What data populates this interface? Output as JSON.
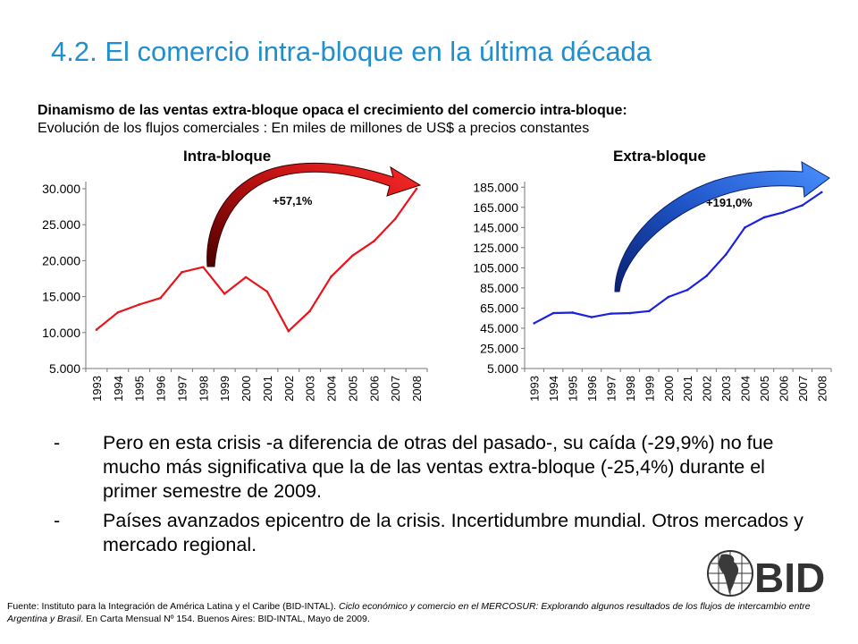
{
  "slide": {
    "title": "4.2. El comercio intra-bloque en la última década",
    "subtitle_bold": "Dinamismo de las ventas extra-bloque opaca el crecimiento del comercio intra-bloque:",
    "subtitle_normal": "Evolución de los flujos comerciales : En miles de millones de US$ a precios constantes"
  },
  "bullets": [
    {
      "marker": "-",
      "text": "Pero en esta crisis -a diferencia de otras del pasado-, su caída (-29,9%) no fue mucho más significativa que la de las ventas extra-bloque (-25,4%) durante el primer semestre de 2009."
    },
    {
      "marker": "-",
      "text": "Países avanzados epicentro de la crisis. Incertidumbre mundial. Otros mercados y mercado regional."
    }
  ],
  "logo": {
    "text": "BID"
  },
  "footer": {
    "part1": "Fuente: Instituto para la Integración de América Latina y el Caribe (BID-INTAL).  ",
    "part2_italic": "Ciclo económico y comercio en el MERCOSUR: Explorando algunos resultados de los flujos de intercambio entre Argentina y Brasil",
    "part3": ". En Carta Mensual Nº 154. Buenos Aires: BID-INTAL,  Mayo de 2009."
  },
  "chart_data": [
    {
      "type": "line",
      "title": "Intra-bloque",
      "annotation": "+57,1%",
      "color": "#e8141b",
      "arrow_color": "#d41e1e",
      "categories": [
        "1993",
        "1994",
        "1995",
        "1996",
        "1997",
        "1998",
        "1999",
        "2000",
        "2001",
        "2002",
        "2003",
        "2004",
        "2005",
        "2006",
        "2007",
        "2008"
      ],
      "values": [
        10400,
        12800,
        13900,
        14800,
        18400,
        19100,
        15400,
        17700,
        15700,
        10200,
        13000,
        17800,
        20700,
        22700,
        25800,
        30000
      ],
      "yticks": [
        5000,
        10000,
        15000,
        20000,
        25000,
        30000
      ],
      "ytick_labels": [
        "5.000",
        "10.000",
        "15.000",
        "20.000",
        "25.000",
        "30.000"
      ],
      "ylim": [
        5000,
        30500
      ],
      "grid": false
    },
    {
      "type": "line",
      "title": "Extra-bloque",
      "annotation": "+191,0%",
      "color": "#1a22e0",
      "arrow_color": "#2f66d8",
      "categories": [
        "1993",
        "1994",
        "1995",
        "1996",
        "1997",
        "1998",
        "1999",
        "2000",
        "2001",
        "2002",
        "2003",
        "2004",
        "2005",
        "2006",
        "2007",
        "2008"
      ],
      "values": [
        50000,
        60000,
        60500,
        56000,
        59500,
        60000,
        62000,
        76000,
        83000,
        97000,
        118000,
        145000,
        155000,
        160000,
        167000,
        180000
      ],
      "yticks": [
        5000,
        25000,
        45000,
        65000,
        85000,
        105000,
        125000,
        145000,
        165000,
        185000
      ],
      "ytick_labels": [
        "5.000",
        "25.000",
        "45.000",
        "65.000",
        "85.000",
        "105.000",
        "125.000",
        "145.000",
        "165.000",
        "185.000"
      ],
      "ylim": [
        5000,
        187000
      ],
      "grid": false
    }
  ]
}
